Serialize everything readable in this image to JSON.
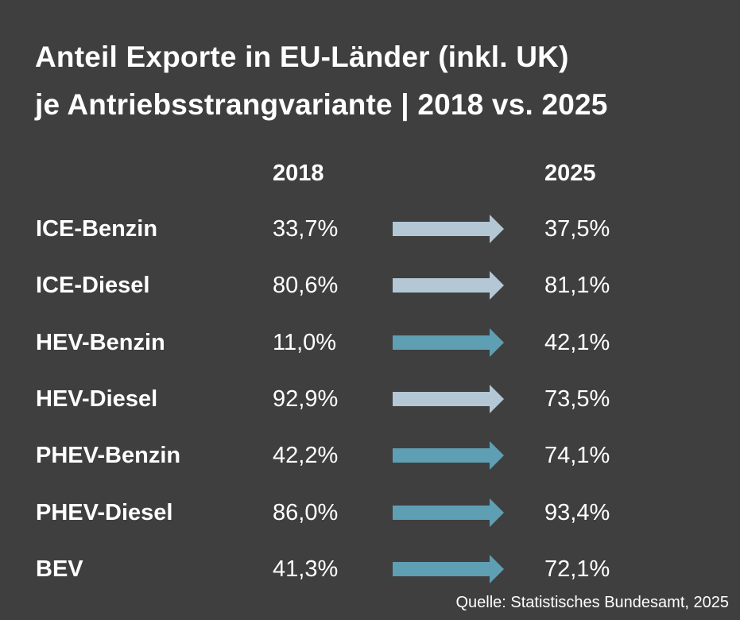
{
  "title_line1": "Anteil Exporte in EU-Länder (inkl. UK)",
  "title_line2": "je Antriebsstrangvariante | 2018 vs. 2025",
  "source": "Quelle: Statistisches Bundesamt, 2025",
  "colors": {
    "background": "#3f3f3f",
    "arrow_increase": "#5f9fb4",
    "arrow_small_change": "#b3c7d5"
  },
  "chart_data": {
    "type": "table",
    "columns": [
      "2018",
      "2025"
    ],
    "rows": [
      {
        "label": "ICE-Benzin",
        "v2018": "33,7%",
        "v2025": "37,5%",
        "arrow_color": "#b3c7d5"
      },
      {
        "label": "ICE-Diesel",
        "v2018": "80,6%",
        "v2025": "81,1%",
        "arrow_color": "#b3c7d5"
      },
      {
        "label": "HEV-Benzin",
        "v2018": "11,0%",
        "v2025": "42,1%",
        "arrow_color": "#5f9fb4"
      },
      {
        "label": "HEV-Diesel",
        "v2018": "92,9%",
        "v2025": "73,5%",
        "arrow_color": "#b3c7d5"
      },
      {
        "label": "PHEV-Benzin",
        "v2018": "42,2%",
        "v2025": "74,1%",
        "arrow_color": "#5f9fb4"
      },
      {
        "label": "PHEV-Diesel",
        "v2018": "86,0%",
        "v2025": "93,4%",
        "arrow_color": "#5f9fb4"
      },
      {
        "label": "BEV",
        "v2018": "41,3%",
        "v2025": "72,1%",
        "arrow_color": "#5f9fb4"
      }
    ]
  }
}
